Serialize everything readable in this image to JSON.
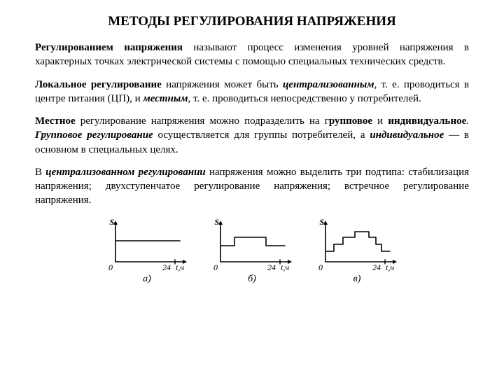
{
  "title": "МЕТОДЫ РЕГУЛИРОВАНИЯ НАПРЯЖЕНИЯ",
  "para1": {
    "lead_b": "Регулированием напряжения",
    "rest": " называют процесс изменения уровней напряжения в характерных точках электрической системы с помощью специальных технических средств."
  },
  "para2": {
    "s1_b": "Локальное регулирование",
    "s2": " напряжения может быть ",
    "s3_bi": "централизованным",
    "s4": ", т. е. проводиться в центре питания (ЦП), и ",
    "s5_bi": "местным",
    "s6": ", т. е. проводиться непосредственно у потребителей."
  },
  "para3": {
    "s1_b": "Местное",
    "s2": " регулирование напряжения можно подразделить на г",
    "s3_b": "рупповое",
    "s4": " и ",
    "s5_b": "индивидуальное",
    "s6": ". ",
    "s7_bi": "Групповое регулирование",
    "s8": " осуществляется для группы потребителей, а ",
    "s9_bi": "индивидуальное",
    "s10": " — в основном в специальных целях."
  },
  "para4": {
    "s1": "В ",
    "s2_bi": "централизованном регулировании",
    "s3": " напряжения можно выделить три подтипа: стабилизация напряжения; двухступенчатое регулирование напряжения; встречное регулирование напряжения."
  },
  "figures": {
    "stroke": "#000000",
    "stroke_width": 1.6,
    "axis_y_label": "S",
    "origin_label": "0",
    "x_tick_label": "24",
    "x_axis_label": "t,ч",
    "caption_a": "а)",
    "caption_b": "б)",
    "caption_v": "в)",
    "font_size_axis": 12,
    "font_size_caption": 14,
    "plot": {
      "w": 130,
      "h": 80,
      "ox": 20,
      "oy": 65,
      "xmax": 120,
      "xtick": 105,
      "ytop": 8,
      "arrow": 5
    },
    "curve_a": [
      [
        20,
        35
      ],
      [
        112,
        35
      ]
    ],
    "curve_b": [
      [
        20,
        42
      ],
      [
        40,
        42
      ],
      [
        40,
        30
      ],
      [
        85,
        30
      ],
      [
        85,
        42
      ],
      [
        112,
        42
      ]
    ],
    "curve_v": [
      [
        20,
        50
      ],
      [
        32,
        50
      ],
      [
        32,
        40
      ],
      [
        45,
        40
      ],
      [
        45,
        30
      ],
      [
        62,
        30
      ],
      [
        62,
        22
      ],
      [
        82,
        22
      ],
      [
        82,
        30
      ],
      [
        92,
        30
      ],
      [
        92,
        40
      ],
      [
        100,
        40
      ],
      [
        100,
        50
      ],
      [
        112,
        50
      ]
    ]
  }
}
